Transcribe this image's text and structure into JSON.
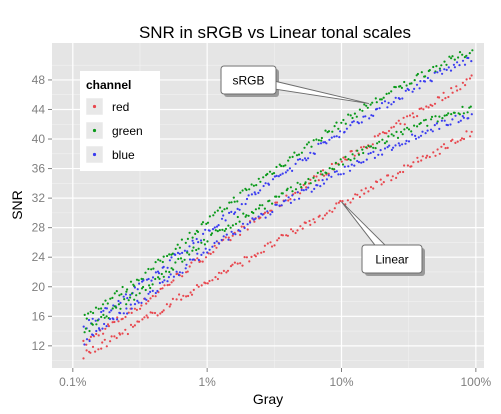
{
  "chart_data": {
    "type": "scatter",
    "title": "SNR in sRGB vs Linear tonal scales",
    "xlabel": "Gray",
    "ylabel": "SNR",
    "x_scale": "log10",
    "xlim": [
      0.0007,
      1.15
    ],
    "ylim": [
      9,
      53
    ],
    "x_ticks": [
      {
        "value": 0.001,
        "label": "0.1%"
      },
      {
        "value": 0.01,
        "label": "1%"
      },
      {
        "value": 0.1,
        "label": "10%"
      },
      {
        "value": 1,
        "label": "100%"
      }
    ],
    "y_ticks": [
      12,
      16,
      20,
      24,
      28,
      32,
      36,
      40,
      44,
      48
    ],
    "grid": true,
    "legend": {
      "title": "channel",
      "position": "top-left",
      "entries": [
        {
          "label": "red",
          "color": "#e8474e"
        },
        {
          "label": "green",
          "color": "#0a9a1a"
        },
        {
          "label": "blue",
          "color": "#3b3df0"
        }
      ]
    },
    "series": [
      {
        "channel": "red",
        "scale": "sRGB",
        "color": "#e8474e",
        "x": [
          0.0012,
          0.0017,
          0.0025,
          0.004,
          0.006,
          0.01,
          0.016,
          0.025,
          0.04,
          0.06,
          0.1,
          0.16,
          0.25,
          0.4,
          0.6,
          0.95
        ],
        "y": [
          12.2,
          14.2,
          16.2,
          18.8,
          21.4,
          24.4,
          27.0,
          29.5,
          32.0,
          34.3,
          37.0,
          39.4,
          41.6,
          44.0,
          46.0,
          48.4
        ]
      },
      {
        "channel": "green",
        "scale": "sRGB",
        "color": "#0a9a1a",
        "x": [
          0.0012,
          0.0017,
          0.0025,
          0.004,
          0.006,
          0.01,
          0.016,
          0.025,
          0.04,
          0.06,
          0.1,
          0.16,
          0.25,
          0.4,
          0.6,
          0.95
        ],
        "y": [
          15.8,
          17.8,
          19.8,
          22.6,
          25.5,
          28.8,
          31.8,
          34.5,
          37.2,
          39.4,
          42.2,
          44.6,
          46.6,
          48.8,
          50.4,
          52.0
        ]
      },
      {
        "channel": "blue",
        "scale": "sRGB",
        "color": "#3b3df0",
        "x": [
          0.0012,
          0.0017,
          0.0025,
          0.004,
          0.006,
          0.01,
          0.016,
          0.025,
          0.04,
          0.06,
          0.1,
          0.16,
          0.25,
          0.4,
          0.6,
          0.95
        ],
        "y": [
          14.6,
          16.6,
          18.6,
          21.4,
          24.3,
          27.4,
          30.4,
          33.2,
          35.8,
          38.2,
          41.0,
          43.3,
          45.4,
          47.6,
          49.3,
          51.0
        ]
      },
      {
        "channel": "red",
        "scale": "Linear",
        "color": "#e8474e",
        "x": [
          0.0012,
          0.0017,
          0.0025,
          0.004,
          0.006,
          0.01,
          0.016,
          0.025,
          0.04,
          0.06,
          0.1,
          0.16,
          0.25,
          0.4,
          0.6,
          0.95
        ],
        "y": [
          10.6,
          12.2,
          14.0,
          16.3,
          18.3,
          20.6,
          22.8,
          24.8,
          27.0,
          28.9,
          31.2,
          33.2,
          35.2,
          37.3,
          39.0,
          41.0
        ]
      },
      {
        "channel": "green",
        "scale": "Linear",
        "color": "#0a9a1a",
        "x": [
          0.0012,
          0.0017,
          0.0025,
          0.004,
          0.006,
          0.01,
          0.016,
          0.025,
          0.04,
          0.06,
          0.1,
          0.16,
          0.25,
          0.4,
          0.6,
          0.95
        ],
        "y": [
          13.6,
          15.8,
          18.0,
          20.7,
          23.2,
          26.4,
          28.8,
          30.8,
          32.8,
          34.6,
          36.8,
          38.7,
          40.4,
          42.0,
          43.2,
          44.4
        ]
      },
      {
        "channel": "blue",
        "scale": "Linear",
        "color": "#3b3df0",
        "x": [
          0.0012,
          0.0017,
          0.0025,
          0.004,
          0.006,
          0.01,
          0.016,
          0.025,
          0.04,
          0.06,
          0.1,
          0.16,
          0.25,
          0.4,
          0.6,
          0.95
        ],
        "y": [
          12.4,
          14.5,
          16.7,
          19.4,
          21.9,
          25.0,
          27.4,
          29.5,
          31.6,
          33.4,
          35.6,
          37.5,
          39.2,
          40.9,
          42.2,
          43.5
        ]
      }
    ],
    "annotations": [
      {
        "text": "sRGB",
        "x": 0.16,
        "y": 44.8
      },
      {
        "text": "Linear",
        "x": 0.1,
        "y": 31.5
      }
    ]
  }
}
